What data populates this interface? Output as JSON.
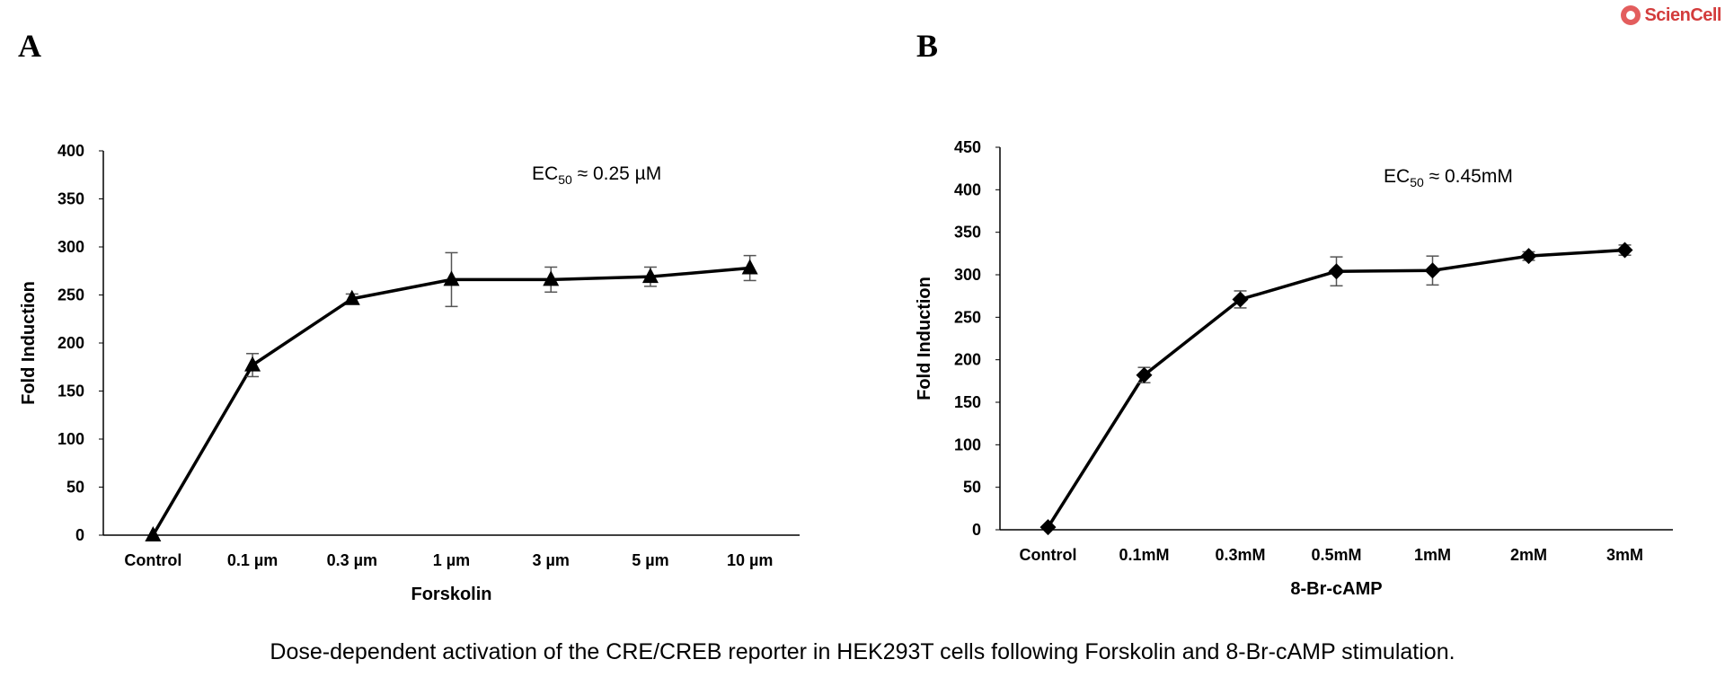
{
  "panels": {
    "a": {
      "letter": "A"
    },
    "b": {
      "letter": "B"
    }
  },
  "logo": {
    "text": "ScienCell"
  },
  "caption": "Dose-dependent activation of the CRE/CREB reporter in HEK293T cells following Forskolin and 8-Br-cAMP stimulation.",
  "chart_data": [
    {
      "type": "line",
      "title": "",
      "categories": [
        "Control",
        "0.1 µm",
        "0.3 µm",
        "1 µm",
        "3 µm",
        "5 µm",
        "10 µm"
      ],
      "series": [
        {
          "name": "Forskolin",
          "marker": "triangle",
          "values": [
            0,
            177,
            246,
            266,
            266,
            269,
            278
          ],
          "errors": [
            0,
            12,
            5,
            28,
            13,
            10,
            13
          ]
        }
      ],
      "xlabel": "Forskolin",
      "ylabel": "Fold Induction",
      "ylim": [
        0,
        400
      ],
      "yticks": [
        0,
        50,
        100,
        150,
        200,
        250,
        300,
        350,
        400
      ],
      "annotation": {
        "prefix": "EC",
        "subscript": "50",
        "suffix": " ≈ 0.25 µM"
      },
      "grid": false
    },
    {
      "type": "line",
      "title": "",
      "categories": [
        "Control",
        "0.1mM",
        "0.3mM",
        "0.5mM",
        "1mM",
        "2mM",
        "3mM"
      ],
      "series": [
        {
          "name": "8-Br-cAMP",
          "marker": "diamond",
          "values": [
            3,
            182,
            271,
            304,
            305,
            322,
            329
          ],
          "errors": [
            0,
            9,
            10,
            17,
            17,
            5,
            6
          ]
        }
      ],
      "xlabel": "8-Br-cAMP",
      "ylabel": "Fold Induction",
      "ylim": [
        0,
        450
      ],
      "yticks": [
        0,
        50,
        100,
        150,
        200,
        250,
        300,
        350,
        400,
        450
      ],
      "annotation": {
        "prefix": "EC",
        "subscript": "50",
        "suffix": " ≈ 0.45mM"
      },
      "grid": false
    }
  ]
}
